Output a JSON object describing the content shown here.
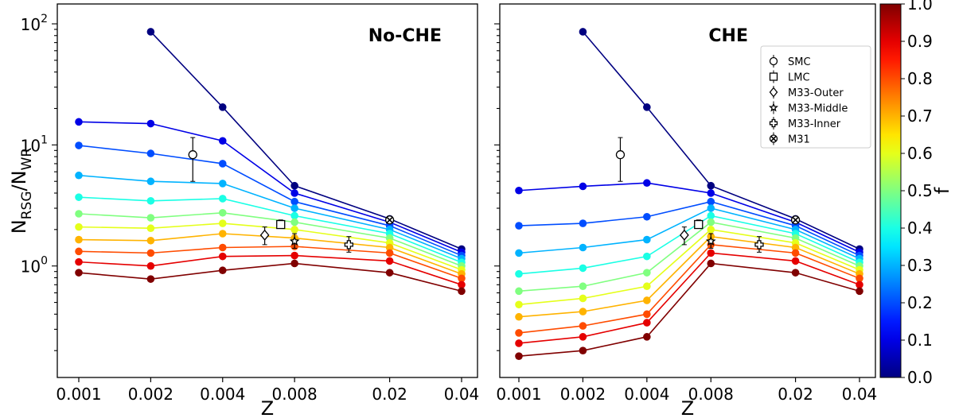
{
  "chart_data": [
    {
      "type": "line",
      "panel_label": "No-CHE",
      "xlabel": "Z",
      "ylabel_main": "N",
      "ylabel_sub1": "RSG",
      "ylabel_sep": "/N",
      "ylabel_sub2": "WR",
      "xscale": "log",
      "yscale": "log",
      "x_ticks": [
        0.001,
        0.002,
        0.004,
        0.008,
        0.02,
        0.04
      ],
      "x_tick_labels": [
        "0.001",
        "0.002",
        "0.004",
        "0.008",
        "0.02",
        "0.04"
      ],
      "y_tick_labels": [
        {
          "base": "10",
          "exp": "0",
          "value": 1
        },
        {
          "base": "10",
          "exp": "1",
          "value": 10
        },
        {
          "base": "10",
          "exp": "2",
          "value": 100
        }
      ],
      "ylim": [
        0.12,
        100
      ],
      "x_series": [
        0.001,
        0.002,
        0.004,
        0.008,
        0.02,
        0.04
      ],
      "series": [
        {
          "f": 0.0,
          "values": [
            null,
            86,
            20.5,
            4.6,
            2.45,
            1.38
          ]
        },
        {
          "f": 0.1,
          "values": [
            15.5,
            15.0,
            10.8,
            4.0,
            2.3,
            1.3
          ]
        },
        {
          "f": 0.2,
          "values": [
            9.9,
            8.5,
            7.0,
            3.4,
            2.15,
            1.22
          ]
        },
        {
          "f": 0.3,
          "values": [
            5.6,
            5.0,
            4.8,
            3.0,
            2.0,
            1.15
          ]
        },
        {
          "f": 0.4,
          "values": [
            3.7,
            3.45,
            3.6,
            2.6,
            1.85,
            1.07
          ]
        },
        {
          "f": 0.5,
          "values": [
            2.7,
            2.5,
            2.75,
            2.3,
            1.7,
            1.0
          ]
        },
        {
          "f": 0.6,
          "values": [
            2.1,
            2.05,
            2.25,
            2.0,
            1.55,
            0.93
          ]
        },
        {
          "f": 0.7,
          "values": [
            1.65,
            1.62,
            1.85,
            1.7,
            1.42,
            0.86
          ]
        },
        {
          "f": 0.8,
          "values": [
            1.32,
            1.28,
            1.42,
            1.45,
            1.28,
            0.79
          ]
        },
        {
          "f": 0.9,
          "values": [
            1.08,
            1.0,
            1.2,
            1.22,
            1.1,
            0.7
          ]
        },
        {
          "f": 1.0,
          "values": [
            0.88,
            0.78,
            0.92,
            1.05,
            0.88,
            0.62
          ]
        }
      ]
    },
    {
      "type": "line",
      "panel_label": "CHE",
      "xlabel": "Z",
      "xscale": "log",
      "yscale": "log",
      "x_ticks": [
        0.001,
        0.002,
        0.004,
        0.008,
        0.02,
        0.04
      ],
      "x_tick_labels": [
        "0.001",
        "0.002",
        "0.004",
        "0.008",
        "0.02",
        "0.04"
      ],
      "ylim": [
        0.12,
        100
      ],
      "x_series": [
        0.001,
        0.002,
        0.004,
        0.008,
        0.02,
        0.04
      ],
      "series": [
        {
          "f": 0.0,
          "values": [
            null,
            86,
            20.5,
            4.6,
            2.45,
            1.38
          ]
        },
        {
          "f": 0.1,
          "values": [
            4.2,
            4.55,
            4.85,
            4.0,
            2.3,
            1.3
          ]
        },
        {
          "f": 0.2,
          "values": [
            2.15,
            2.25,
            2.55,
            3.4,
            2.15,
            1.22
          ]
        },
        {
          "f": 0.3,
          "values": [
            1.28,
            1.42,
            1.65,
            3.0,
            2.0,
            1.15
          ]
        },
        {
          "f": 0.4,
          "values": [
            0.86,
            0.96,
            1.2,
            2.6,
            1.85,
            1.07
          ]
        },
        {
          "f": 0.5,
          "values": [
            0.62,
            0.68,
            0.88,
            2.3,
            1.7,
            1.0
          ]
        },
        {
          "f": 0.6,
          "values": [
            0.48,
            0.54,
            0.68,
            2.0,
            1.55,
            0.93
          ]
        },
        {
          "f": 0.7,
          "values": [
            0.38,
            0.42,
            0.52,
            1.75,
            1.42,
            0.86
          ]
        },
        {
          "f": 0.8,
          "values": [
            0.28,
            0.32,
            0.4,
            1.5,
            1.28,
            0.79
          ]
        },
        {
          "f": 0.9,
          "values": [
            0.23,
            0.26,
            0.34,
            1.28,
            1.1,
            0.7
          ]
        },
        {
          "f": 1.0,
          "values": [
            0.18,
            0.2,
            0.26,
            1.05,
            0.88,
            0.62
          ]
        }
      ]
    }
  ],
  "observations": [
    {
      "name": "SMC",
      "marker": "circle",
      "x": 0.003,
      "y": 8.3,
      "ylow": 5.0,
      "yhigh": 11.5
    },
    {
      "name": "LMC",
      "marker": "square",
      "x": 0.007,
      "y": 2.2,
      "ylow": 2.05,
      "yhigh": 2.4
    },
    {
      "name": "M33-Outer",
      "marker": "diamond",
      "x": 0.006,
      "y": 1.8,
      "ylow": 1.5,
      "yhigh": 2.1
    },
    {
      "name": "M33-Middle",
      "marker": "star",
      "x": 0.008,
      "y": 1.6,
      "ylow": 1.4,
      "yhigh": 1.85
    },
    {
      "name": "M33-Inner",
      "marker": "plus",
      "x": 0.0135,
      "y": 1.5,
      "ylow": 1.3,
      "yhigh": 1.75
    },
    {
      "name": "M31",
      "marker": "cross",
      "x": 0.02,
      "y": 2.4,
      "ylow": 2.3,
      "yhigh": 2.5
    }
  ],
  "colorbar": {
    "label": "f",
    "colormap": "jet",
    "range": [
      0.0,
      1.0
    ],
    "ticks": [
      "0.0",
      "0.1",
      "0.2",
      "0.3",
      "0.4",
      "0.5",
      "0.6",
      "0.7",
      "0.8",
      "0.9",
      "1.0"
    ]
  }
}
